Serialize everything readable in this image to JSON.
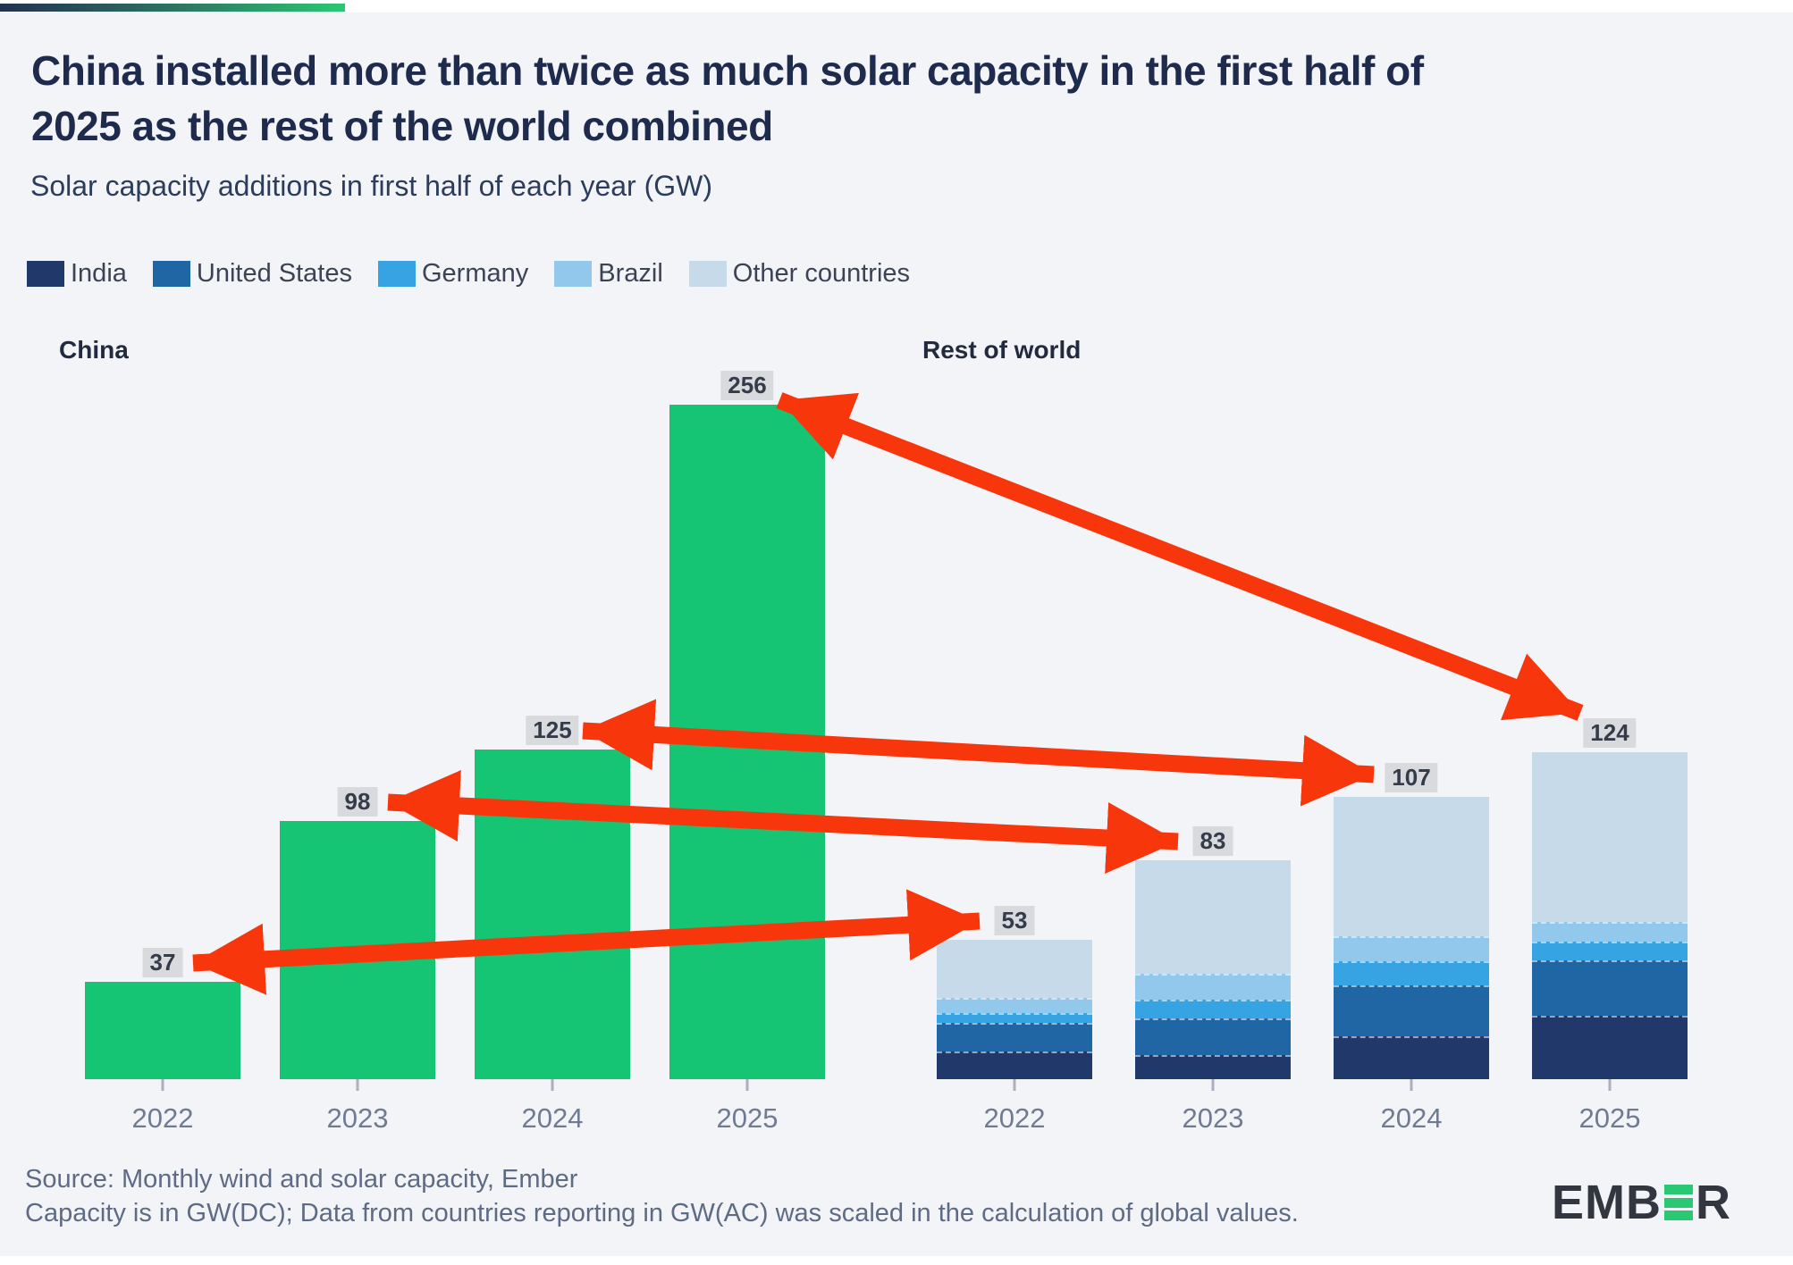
{
  "header": {
    "title_lines": [
      "China installed more than twice as much solar capacity in the first half of",
      "2025 as the rest of the world combined"
    ],
    "subtitle": "Solar capacity additions in first half of each year (GW)"
  },
  "legend": {
    "items": [
      {
        "label": "India",
        "color": "#21386b"
      },
      {
        "label": "United States",
        "color": "#2166a4"
      },
      {
        "label": "Germany",
        "color": "#36a3e3"
      },
      {
        "label": "Brazil",
        "color": "#92c8ec"
      },
      {
        "label": "Other countries",
        "color": "#c7daea"
      }
    ]
  },
  "chart_data": {
    "type": "bar",
    "unit": "GW",
    "years": [
      "2022",
      "2023",
      "2024",
      "2025"
    ],
    "groups": [
      {
        "label": "China",
        "style": "single",
        "color": "#16c573",
        "totals": [
          37,
          98,
          125,
          256
        ]
      },
      {
        "label": "Rest of world",
        "style": "stacked",
        "totals": [
          53,
          83,
          107,
          124
        ],
        "series": [
          {
            "name": "India",
            "color": "#21386b",
            "values": [
              10.5,
              9,
              16,
              24
            ]
          },
          {
            "name": "United States",
            "color": "#2166a4",
            "values": [
              11,
              14,
              19.5,
              21
            ]
          },
          {
            "name": "Germany",
            "color": "#36a3e3",
            "values": [
              3.5,
              7,
              9,
              7
            ]
          },
          {
            "name": "Brazil",
            "color": "#92c8ec",
            "values": [
              6,
              10,
              9.5,
              7.5
            ]
          },
          {
            "name": "Other countries",
            "color": "#c7daea",
            "values": [
              22,
              43,
              53,
              64.5
            ]
          }
        ]
      }
    ],
    "value_label_bg": "#d8dade",
    "grid": false,
    "legend_position": "top-left"
  },
  "annotations": {
    "arrow_color": "#f7360c",
    "arrows": [
      {
        "from": "China 2022",
        "to": "Rest of world 2022",
        "double_headed": true
      },
      {
        "from": "China 2023",
        "to": "Rest of world 2023",
        "double_headed": true
      },
      {
        "from": "China 2024",
        "to": "Rest of world 2024",
        "double_headed": true
      },
      {
        "from": "China 2025",
        "to": "Rest of world 2025",
        "double_headed": true
      }
    ]
  },
  "footer": {
    "source_line_1": "Source: Monthly wind and solar capacity, Ember",
    "source_line_2": "Capacity is in GW(DC); Data from countries reporting in GW(AC) was scaled in the calculation of global values.",
    "logo": {
      "prefix": "EMB",
      "suffix": "R",
      "green_color": "#2bc873",
      "alt": "EMBER"
    }
  }
}
